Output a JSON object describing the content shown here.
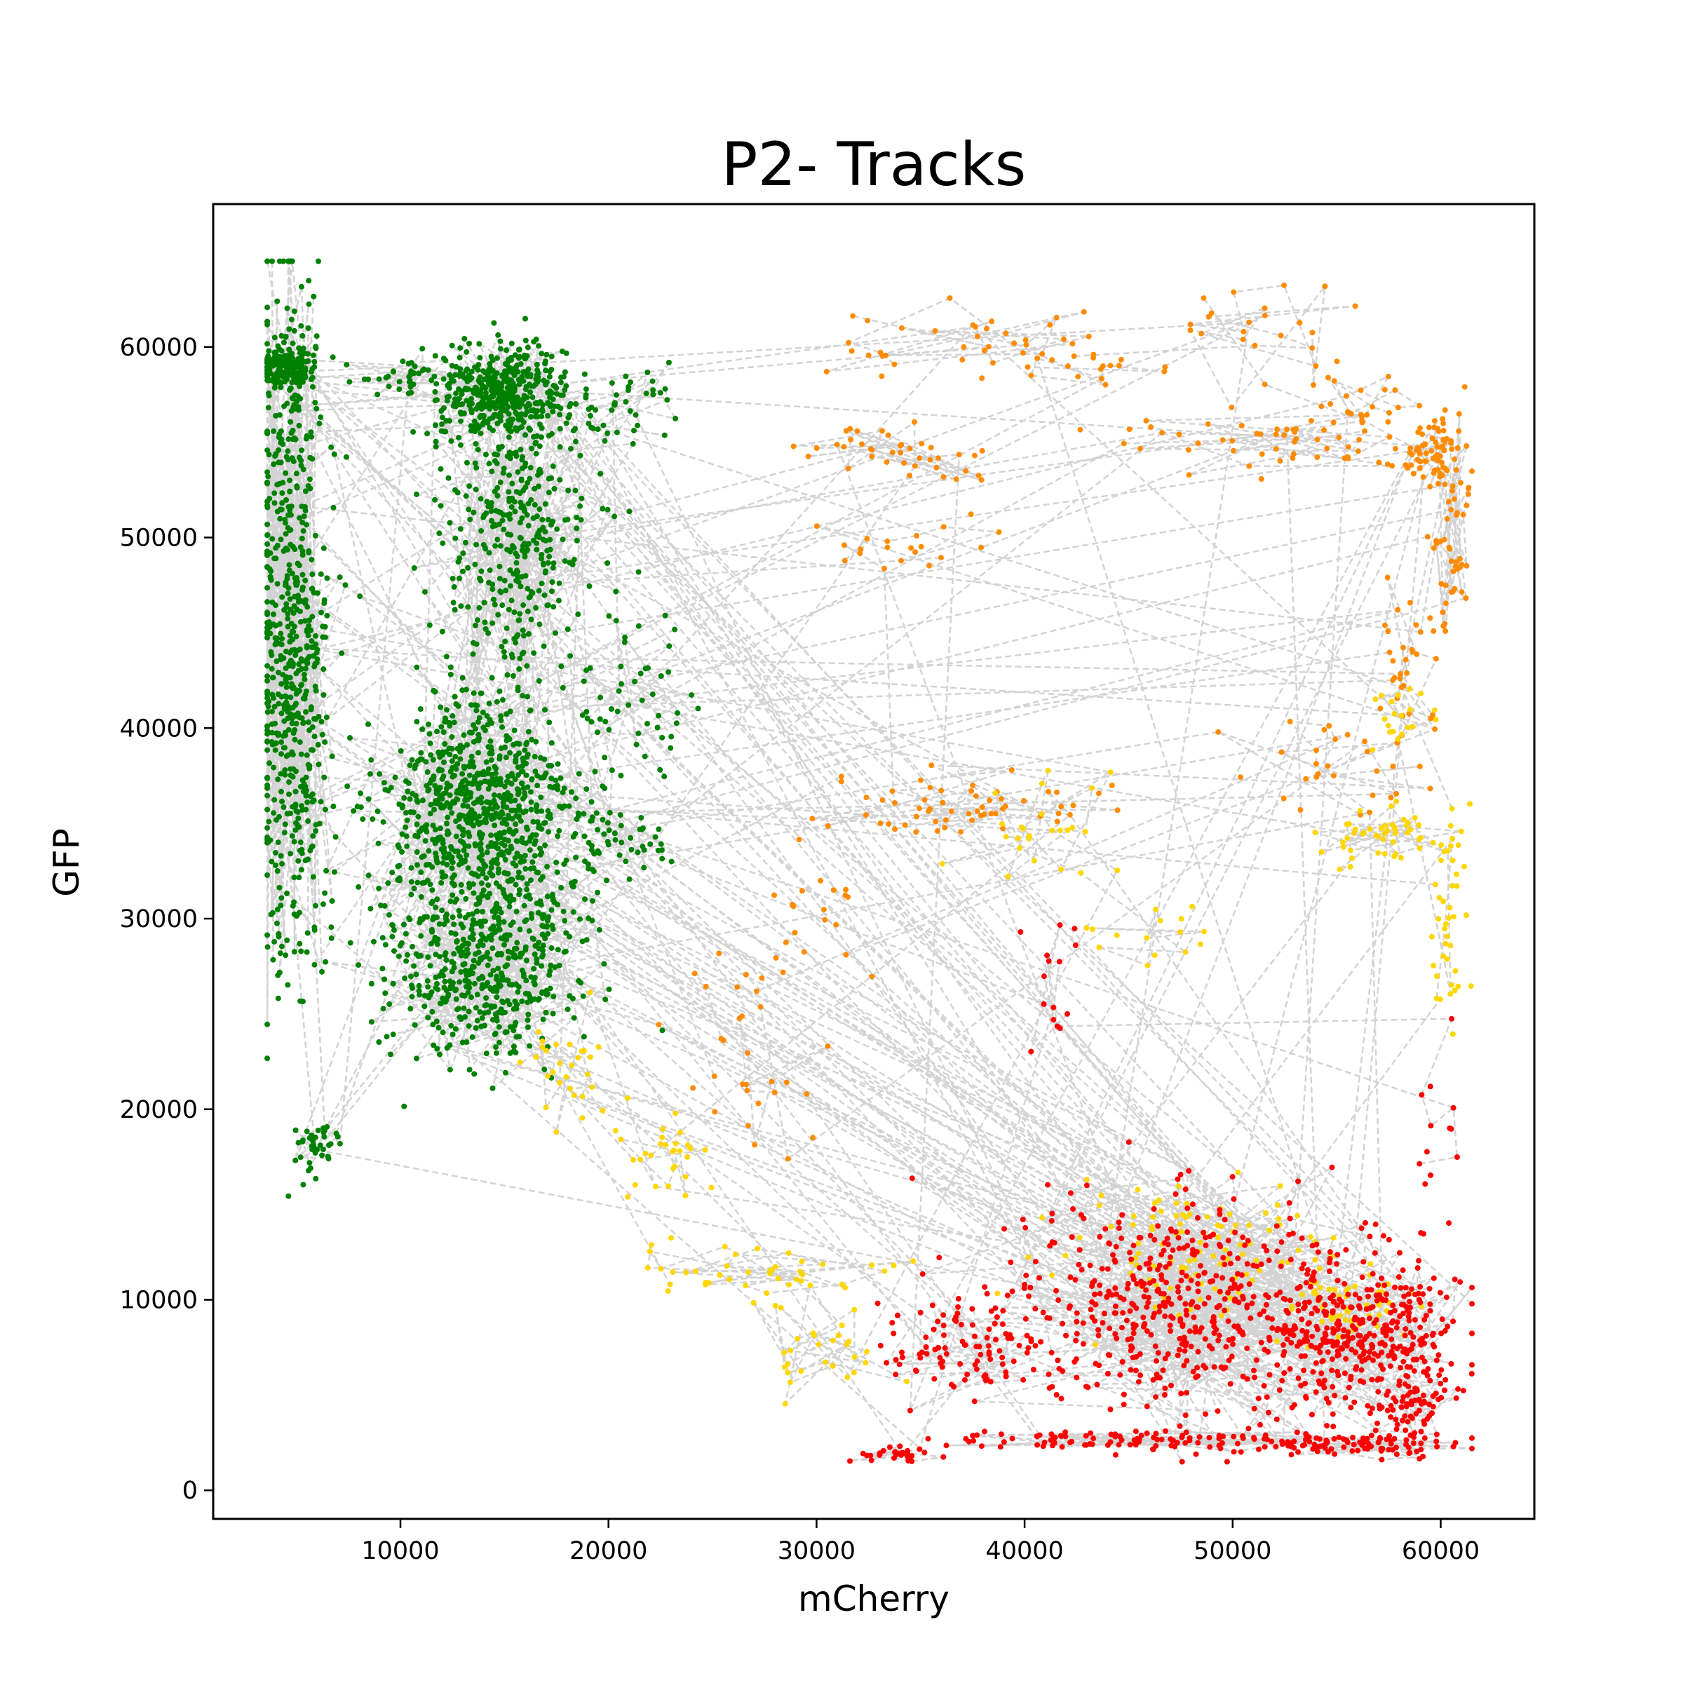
{
  "chart_data": {
    "type": "scatter",
    "title": "P2- Tracks",
    "xlabel": "mCherry",
    "ylabel": "GFP",
    "xlim": [
      1000,
      64500
    ],
    "ylim": [
      -1500,
      67500
    ],
    "xticks": [
      10000,
      20000,
      30000,
      40000,
      50000,
      60000
    ],
    "yticks": [
      0,
      10000,
      20000,
      30000,
      40000,
      50000,
      60000
    ],
    "xtick_labels": [
      "10000",
      "20000",
      "30000",
      "40000",
      "50000",
      "60000"
    ],
    "ytick_labels": [
      "0",
      "10000",
      "20000",
      "30000",
      "40000",
      "50000",
      "60000"
    ],
    "grid": false,
    "legend": "none",
    "track_line_style": "dashed",
    "series": [
      {
        "color": "#008000",
        "clusters": [
          {
            "cx": 4500,
            "cy": 59000,
            "sx": 700,
            "sy": 600,
            "n": 180
          },
          {
            "cx": 4800,
            "cy": 45000,
            "sx": 900,
            "sy": 9000,
            "n": 650
          },
          {
            "cx": 6000,
            "cy": 18000,
            "sx": 700,
            "sy": 700,
            "n": 40
          },
          {
            "cx": 10500,
            "cy": 58500,
            "sx": 1500,
            "sy": 500,
            "n": 40
          },
          {
            "cx": 15000,
            "cy": 57500,
            "sx": 1500,
            "sy": 1200,
            "n": 450
          },
          {
            "cx": 15500,
            "cy": 50000,
            "sx": 1800,
            "sy": 3500,
            "n": 350
          },
          {
            "cx": 13800,
            "cy": 35500,
            "sx": 2300,
            "sy": 3000,
            "n": 800
          },
          {
            "cx": 14000,
            "cy": 27500,
            "sx": 2300,
            "sy": 2500,
            "n": 500
          },
          {
            "cx": 20500,
            "cy": 57000,
            "sx": 1200,
            "sy": 1000,
            "n": 40
          },
          {
            "cx": 21000,
            "cy": 41000,
            "sx": 1500,
            "sy": 3000,
            "n": 60
          },
          {
            "cx": 20500,
            "cy": 34000,
            "sx": 1500,
            "sy": 800,
            "n": 40
          }
        ]
      },
      {
        "color": "#ff8c00",
        "clusters": [
          {
            "cx": 37000,
            "cy": 60500,
            "sx": 3500,
            "sy": 900,
            "n": 35
          },
          {
            "cx": 42000,
            "cy": 59000,
            "sx": 2000,
            "sy": 400,
            "n": 20
          },
          {
            "cx": 52000,
            "cy": 61000,
            "sx": 2500,
            "sy": 1500,
            "n": 25
          },
          {
            "cx": 57000,
            "cy": 57000,
            "sx": 1500,
            "sy": 1000,
            "n": 25
          },
          {
            "cx": 59500,
            "cy": 54500,
            "sx": 700,
            "sy": 700,
            "n": 60
          },
          {
            "cx": 60500,
            "cy": 50000,
            "sx": 600,
            "sy": 3000,
            "n": 60
          },
          {
            "cx": 58500,
            "cy": 43500,
            "sx": 800,
            "sy": 1800,
            "n": 30
          },
          {
            "cx": 52500,
            "cy": 55000,
            "sx": 3500,
            "sy": 800,
            "n": 50
          },
          {
            "cx": 34000,
            "cy": 54500,
            "sx": 3000,
            "sy": 600,
            "n": 40
          },
          {
            "cx": 35000,
            "cy": 49500,
            "sx": 2000,
            "sy": 800,
            "n": 20
          },
          {
            "cx": 36500,
            "cy": 36000,
            "sx": 3500,
            "sy": 800,
            "n": 60
          },
          {
            "cx": 55000,
            "cy": 38500,
            "sx": 2000,
            "sy": 1500,
            "n": 30
          },
          {
            "cx": 26500,
            "cy": 23000,
            "sx": 2500,
            "sy": 3000,
            "n": 30
          },
          {
            "cx": 31000,
            "cy": 30000,
            "sx": 2500,
            "sy": 1500,
            "n": 20
          }
        ]
      },
      {
        "color": "#ffd700",
        "clusters": [
          {
            "cx": 57000,
            "cy": 34500,
            "sx": 1500,
            "sy": 700,
            "n": 50
          },
          {
            "cx": 60500,
            "cy": 31000,
            "sx": 400,
            "sy": 3000,
            "n": 40
          },
          {
            "cx": 58000,
            "cy": 40500,
            "sx": 800,
            "sy": 900,
            "n": 20
          },
          {
            "cx": 49500,
            "cy": 12500,
            "sx": 4000,
            "sy": 1800,
            "n": 120
          },
          {
            "cx": 56000,
            "cy": 9500,
            "sx": 1500,
            "sy": 800,
            "n": 40
          },
          {
            "cx": 26500,
            "cy": 11500,
            "sx": 3500,
            "sy": 500,
            "n": 40
          },
          {
            "cx": 22500,
            "cy": 17500,
            "sx": 1500,
            "sy": 2000,
            "n": 30
          },
          {
            "cx": 18000,
            "cy": 22000,
            "sx": 1000,
            "sy": 1500,
            "n": 30
          },
          {
            "cx": 31000,
            "cy": 7500,
            "sx": 2000,
            "sy": 1500,
            "n": 30
          },
          {
            "cx": 41000,
            "cy": 34500,
            "sx": 2500,
            "sy": 1500,
            "n": 25
          },
          {
            "cx": 46000,
            "cy": 29500,
            "sx": 2000,
            "sy": 1000,
            "n": 15
          }
        ]
      },
      {
        "color": "#ff0000",
        "clusters": [
          {
            "cx": 48000,
            "cy": 9500,
            "sx": 4500,
            "sy": 2800,
            "n": 550
          },
          {
            "cx": 56500,
            "cy": 8000,
            "sx": 2200,
            "sy": 2000,
            "n": 320
          },
          {
            "cx": 59000,
            "cy": 4500,
            "sx": 800,
            "sy": 800,
            "n": 60
          },
          {
            "cx": 37000,
            "cy": 7500,
            "sx": 2000,
            "sy": 1300,
            "n": 90
          },
          {
            "cx": 46000,
            "cy": 2600,
            "sx": 5000,
            "sy": 250,
            "n": 120
          },
          {
            "cx": 56500,
            "cy": 2400,
            "sx": 2000,
            "sy": 300,
            "n": 70
          },
          {
            "cx": 34000,
            "cy": 1900,
            "sx": 1200,
            "sy": 200,
            "n": 30
          },
          {
            "cx": 41500,
            "cy": 26000,
            "sx": 1000,
            "sy": 2500,
            "n": 15
          },
          {
            "cx": 59500,
            "cy": 17000,
            "sx": 800,
            "sy": 2500,
            "n": 15
          }
        ]
      }
    ]
  }
}
